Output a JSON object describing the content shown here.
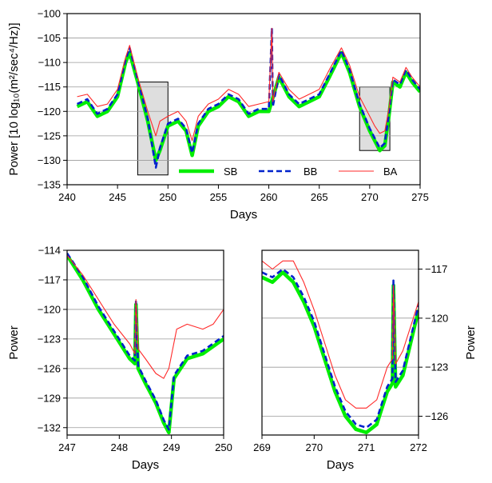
{
  "chart_data": [
    {
      "id": "top",
      "type": "line",
      "xlabel": "Days",
      "ylabel": "Power [10 log₁₀(m²/sec⁴/Hz)]",
      "xlim": [
        240,
        275
      ],
      "ylim": [
        -135,
        -100
      ],
      "x_ticks": [
        "240",
        "245",
        "250",
        "255",
        "260",
        "265",
        "270",
        "275"
      ],
      "y_ticks": [
        "-135",
        "-130",
        "-125",
        "-120",
        "-115",
        "-110",
        "-105",
        "-100"
      ],
      "grid": "horizontal",
      "legend": {
        "position": "bottom-right",
        "entries": [
          "SB",
          "BB",
          "BA"
        ]
      },
      "highlight_boxes": [
        {
          "x": [
            247,
            250
          ],
          "y": [
            -133,
            -114
          ]
        },
        {
          "x": [
            269,
            272
          ],
          "y": [
            -128,
            -115
          ]
        }
      ],
      "series": [
        {
          "name": "SB",
          "color": "#00ee00",
          "style": "solid",
          "x": [
            241,
            242,
            243,
            244,
            245,
            245.8,
            246.2,
            247,
            248,
            248.8,
            249.2,
            250,
            251,
            251.8,
            252.4,
            253,
            254,
            255,
            256,
            257,
            258,
            259,
            260,
            261,
            262,
            263,
            264,
            265,
            266,
            267.2,
            268,
            269,
            270,
            270.5,
            271,
            271.5,
            271.9,
            272.3,
            273,
            273.6,
            274.2,
            275
          ],
          "y": [
            -119,
            -118,
            -121,
            -120,
            -117,
            -110,
            -108,
            -114,
            -122,
            -130,
            -128,
            -123,
            -122,
            -124,
            -129,
            -123,
            -120,
            -119,
            -117,
            -118,
            -121,
            -120,
            -120,
            -113,
            -117,
            -119,
            -118,
            -117,
            -113,
            -108,
            -112,
            -119,
            -124,
            -126,
            -128,
            -127,
            -121,
            -114,
            -115,
            -112,
            -114,
            -116
          ]
        },
        {
          "name": "BB",
          "color": "#0022cc",
          "style": "dashed",
          "x": [
            241,
            242,
            243,
            244,
            245,
            245.8,
            246.2,
            247,
            248,
            248.8,
            249.2,
            250,
            251,
            251.8,
            252.4,
            253,
            254,
            255,
            256,
            257,
            258,
            259,
            260,
            260.3,
            260.4,
            261,
            262,
            263,
            264,
            265,
            266,
            267.2,
            268,
            269,
            270,
            270.5,
            271,
            271.5,
            271.9,
            272.3,
            273,
            273.6,
            274.2,
            275
          ],
          "y": [
            -118.5,
            -117.5,
            -120.5,
            -119.5,
            -116.5,
            -109.5,
            -107,
            -113.5,
            -121.5,
            -131.5,
            -127.5,
            -122.5,
            -121.5,
            -123.5,
            -128.5,
            -122.5,
            -119.5,
            -118.5,
            -116.5,
            -117.5,
            -120.5,
            -119.5,
            -119.5,
            -103,
            -119,
            -112.5,
            -116.5,
            -118.5,
            -117.5,
            -116.5,
            -112.5,
            -107.5,
            -111.5,
            -118.5,
            -123.5,
            -125.5,
            -127.5,
            -126.5,
            -120.5,
            -113.5,
            -114.5,
            -111.5,
            -113.5,
            -115.5
          ]
        },
        {
          "name": "BA",
          "color": "#ff2a2a",
          "style": "solid",
          "x": [
            241,
            242,
            243,
            244,
            245,
            245.8,
            246.2,
            247,
            248,
            248.8,
            249.2,
            250,
            251,
            251.8,
            252.4,
            253,
            254,
            255,
            256,
            257,
            258,
            259,
            260,
            260.3,
            260.4,
            261,
            262,
            263,
            264,
            265,
            266,
            267.2,
            268,
            269,
            270,
            270.5,
            271,
            271.5,
            271.9,
            272.3,
            273,
            273.6,
            274.2,
            275
          ],
          "y": [
            -117,
            -116.5,
            -119,
            -118.5,
            -115.5,
            -109,
            -106.5,
            -113,
            -120,
            -125,
            -122,
            -121,
            -120,
            -122,
            -126,
            -121,
            -118.5,
            -117.5,
            -115.5,
            -116.5,
            -119,
            -118.5,
            -118,
            -103,
            -118,
            -112,
            -115.5,
            -117.5,
            -116.5,
            -115.5,
            -111.5,
            -107,
            -110.5,
            -117,
            -121,
            -123,
            -124.5,
            -124,
            -119.5,
            -113,
            -114,
            -111,
            -113,
            -115
          ]
        }
      ]
    },
    {
      "id": "bottom-left",
      "type": "line",
      "xlabel": "Days",
      "ylabel": "Power",
      "xlim": [
        247,
        250
      ],
      "ylim": [
        -132.75,
        -114
      ],
      "x_ticks": [
        "247",
        "248",
        "249",
        "250"
      ],
      "y_ticks": [
        "-114",
        "-117",
        "-120",
        "-123",
        "-126",
        "-129",
        "-132"
      ],
      "grid": "horizontal",
      "series": [
        {
          "name": "SB",
          "color": "#00ee00",
          "style": "solid",
          "x": [
            247,
            247.3,
            247.6,
            247.9,
            248.2,
            248.3,
            248.32,
            248.36,
            248.5,
            248.7,
            248.85,
            248.95,
            249.05,
            249.3,
            249.6,
            250
          ],
          "y": [
            -114.5,
            -117,
            -120,
            -122.5,
            -125,
            -125.5,
            -119.5,
            -126,
            -127.5,
            -129.5,
            -131.5,
            -132.5,
            -127,
            -125,
            -124.5,
            -123
          ]
        },
        {
          "name": "BB",
          "color": "#0022cc",
          "style": "dashed",
          "x": [
            247,
            247.3,
            247.6,
            247.9,
            248.2,
            248.3,
            248.32,
            248.36,
            248.5,
            248.7,
            248.85,
            248.95,
            249.05,
            249.3,
            249.6,
            250
          ],
          "y": [
            -114.3,
            -116.7,
            -119.7,
            -122.2,
            -124.7,
            -125.2,
            -119.2,
            -125.7,
            -127.2,
            -129.2,
            -131.2,
            -132.2,
            -126.7,
            -124.7,
            -124.2,
            -122.7
          ]
        },
        {
          "name": "BA",
          "color": "#ff2a2a",
          "style": "solid",
          "x": [
            247,
            247.3,
            247.6,
            247.9,
            248.2,
            248.3,
            248.32,
            248.36,
            248.5,
            248.7,
            248.85,
            248.95,
            249.1,
            249.3,
            249.6,
            249.8,
            250
          ],
          "y": [
            -114.5,
            -116.5,
            -119,
            -121.5,
            -123.5,
            -124.5,
            -119,
            -124,
            -125,
            -126.5,
            -127,
            -126,
            -122,
            -121.5,
            -122,
            -121.5,
            -120
          ]
        }
      ]
    },
    {
      "id": "bottom-right",
      "type": "line",
      "xlabel": "Days",
      "ylabel": "Power",
      "xlim": [
        269,
        272
      ],
      "ylim": [
        -127.15,
        -115.85
      ],
      "x_ticks": [
        "269",
        "270",
        "271",
        "272"
      ],
      "y_ticks": [
        "-117",
        "-120",
        "-123",
        "-126"
      ],
      "grid": "horizontal",
      "series": [
        {
          "name": "SB",
          "color": "#00ee00",
          "style": "solid",
          "x": [
            269,
            269.2,
            269.4,
            269.6,
            269.8,
            270,
            270.2,
            270.4,
            270.6,
            270.8,
            271,
            271.2,
            271.4,
            271.5,
            271.52,
            271.56,
            271.7,
            271.85,
            272
          ],
          "y": [
            -117.5,
            -117.8,
            -117.2,
            -117.8,
            -119,
            -120.5,
            -122.5,
            -124.5,
            -126,
            -126.8,
            -127,
            -126.5,
            -124.5,
            -124,
            -118,
            -124.2,
            -123.5,
            -121.5,
            -119.5
          ]
        },
        {
          "name": "BB",
          "color": "#0022cc",
          "style": "dashed",
          "x": [
            269,
            269.2,
            269.4,
            269.6,
            269.8,
            270,
            270.2,
            270.4,
            270.6,
            270.8,
            271,
            271.2,
            271.4,
            271.5,
            271.52,
            271.56,
            271.7,
            271.85,
            272
          ],
          "y": [
            -117.2,
            -117.5,
            -117,
            -117.5,
            -118.7,
            -120.2,
            -122.2,
            -124.2,
            -125.7,
            -126.5,
            -126.7,
            -126.2,
            -124.2,
            -123.7,
            -117.7,
            -123.9,
            -123.2,
            -121.2,
            -119.2
          ]
        },
        {
          "name": "BA",
          "color": "#ff2a2a",
          "style": "solid",
          "x": [
            269,
            269.2,
            269.4,
            269.6,
            269.8,
            270,
            270.2,
            270.4,
            270.6,
            270.8,
            271,
            271.2,
            271.4,
            271.5,
            271.52,
            271.56,
            271.7,
            271.85,
            272
          ],
          "y": [
            -116.5,
            -117,
            -116.5,
            -116.5,
            -117.8,
            -119.5,
            -121.5,
            -123.5,
            -125,
            -125.5,
            -125.5,
            -125,
            -123,
            -122.5,
            -118,
            -122.8,
            -122,
            -120.5,
            -119
          ]
        }
      ]
    }
  ]
}
